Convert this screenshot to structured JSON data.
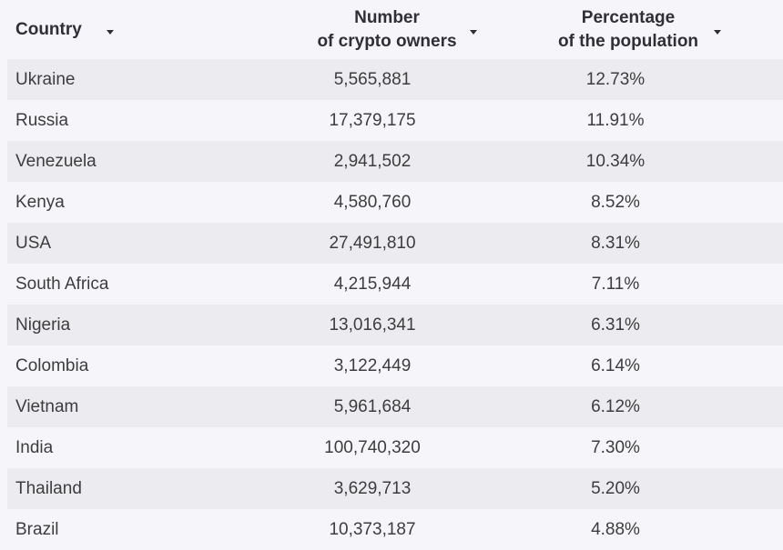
{
  "table": {
    "headers": {
      "country": "Country",
      "owners_line1": "Number",
      "owners_line2": "of crypto owners",
      "pct_line1": "Percentage",
      "pct_line2": "of the population"
    },
    "rows": [
      {
        "country": "Ukraine",
        "owners": "5,565,881",
        "pct": "12.73%"
      },
      {
        "country": "Russia",
        "owners": "17,379,175",
        "pct": "11.91%"
      },
      {
        "country": "Venezuela",
        "owners": "2,941,502",
        "pct": "10.34%"
      },
      {
        "country": "Kenya",
        "owners": "4,580,760",
        "pct": "8.52%"
      },
      {
        "country": "USA",
        "owners": "27,491,810",
        "pct": "8.31%"
      },
      {
        "country": "South Africa",
        "owners": "4,215,944",
        "pct": "7.11%"
      },
      {
        "country": "Nigeria",
        "owners": "13,016,341",
        "pct": "6.31%"
      },
      {
        "country": "Colombia",
        "owners": "3,122,449",
        "pct": "6.14%"
      },
      {
        "country": "Vietnam",
        "owners": "5,961,684",
        "pct": "6.12%"
      },
      {
        "country": "India",
        "owners": "100,740,320",
        "pct": "7.30%"
      },
      {
        "country": "Thailand",
        "owners": "3,629,713",
        "pct": "5.20%"
      },
      {
        "country": "Brazil",
        "owners": "10,373,187",
        "pct": "4.88%"
      }
    ]
  },
  "icons": {
    "sort": "caret-down-icon"
  },
  "colors": {
    "background": "#f6f6fa",
    "stripe": "#ececf0",
    "header_text": "#2f2f35",
    "body_text": "#3d3d3d"
  }
}
